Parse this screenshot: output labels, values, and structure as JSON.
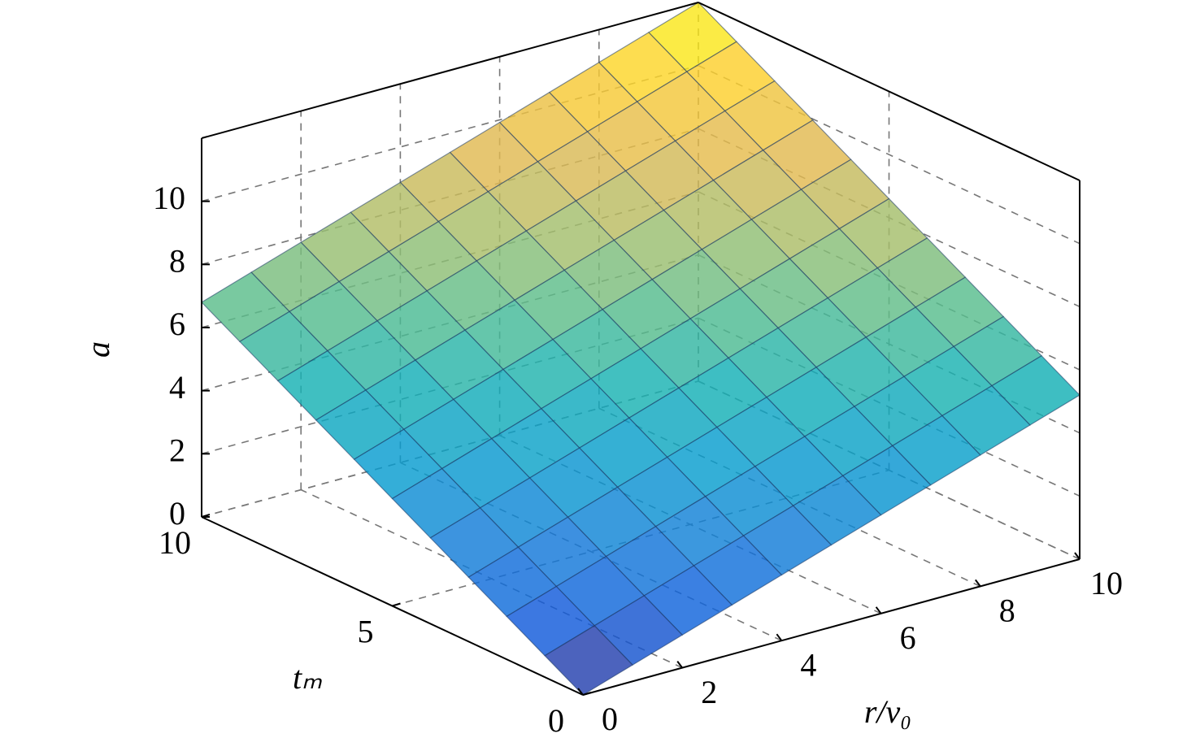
{
  "chart_data": {
    "type": "surface",
    "xlabel": "r/v₀",
    "ylabel": "tₘ",
    "zlabel": "a",
    "x": [
      0,
      1,
      2,
      3,
      4,
      5,
      6,
      7,
      8,
      9,
      10
    ],
    "y": [
      0,
      1,
      2,
      3,
      4,
      5,
      6,
      7,
      8,
      9,
      10
    ],
    "z": [
      [
        0,
        0.52,
        1.04,
        1.56,
        2.08,
        2.6,
        3.12,
        3.64,
        4.16,
        4.68,
        5.2
      ],
      [
        0.68,
        1.2,
        1.72,
        2.24,
        2.76,
        3.28,
        3.8,
        4.32,
        4.84,
        5.36,
        5.88
      ],
      [
        1.36,
        1.88,
        2.4,
        2.92,
        3.44,
        3.96,
        4.48,
        5,
        5.52,
        6.04,
        6.56
      ],
      [
        2.04,
        2.56,
        3.08,
        3.6,
        4.12,
        4.64,
        5.16,
        5.68,
        6.2,
        6.72,
        7.24
      ],
      [
        2.72,
        3.24,
        3.76,
        4.28,
        4.8,
        5.32,
        5.84,
        6.36,
        6.88,
        7.4,
        7.92
      ],
      [
        3.4,
        3.92,
        4.44,
        4.96,
        5.48,
        6,
        6.52,
        7.04,
        7.56,
        8.08,
        8.6
      ],
      [
        4.08,
        4.6,
        5.12,
        5.64,
        6.16,
        6.68,
        7.2,
        7.72,
        8.24,
        8.76,
        9.28
      ],
      [
        4.76,
        5.28,
        5.8,
        6.32,
        6.84,
        7.36,
        7.88,
        8.4,
        8.92,
        9.44,
        9.96
      ],
      [
        5.44,
        5.96,
        6.48,
        7,
        7.52,
        8.04,
        8.56,
        9.08,
        9.6,
        10.12,
        10.64
      ],
      [
        6.12,
        6.64,
        7.16,
        7.68,
        8.2,
        8.72,
        9.24,
        9.76,
        10.28,
        10.8,
        11.32
      ],
      [
        6.8,
        7.32,
        7.84,
        8.36,
        8.88,
        9.4,
        9.92,
        10.44,
        10.96,
        11.48,
        12
      ]
    ],
    "xlim": [
      0,
      10
    ],
    "ylim": [
      0,
      10
    ],
    "zlim": [
      0,
      12
    ],
    "xticks": [
      0,
      2,
      4,
      6,
      8,
      10
    ],
    "yticks": [
      0,
      5,
      10
    ],
    "zticks": [
      0,
      2,
      4,
      6,
      8,
      10
    ],
    "grid": true,
    "colormap": "parula"
  }
}
